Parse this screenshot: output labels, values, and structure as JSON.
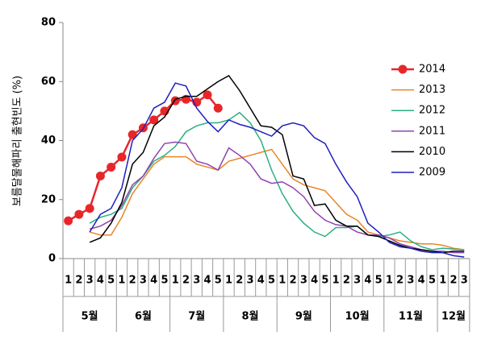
{
  "chart_data": {
    "type": "line",
    "y_label": "보름달물해파리 출현빈도 (%)",
    "categories": [
      "1",
      "2",
      "3",
      "4",
      "5",
      "1",
      "2",
      "3",
      "4",
      "5",
      "1",
      "2",
      "3",
      "4",
      "5",
      "1",
      "2",
      "3",
      "4",
      "5",
      "1",
      "2",
      "3",
      "4",
      "5",
      "1",
      "2",
      "3",
      "4",
      "5",
      "1",
      "2",
      "3",
      "4",
      "5",
      "1",
      "2",
      "3"
    ],
    "groups": [
      {
        "label": "5월",
        "span": 5
      },
      {
        "label": "6월",
        "span": 5
      },
      {
        "label": "7월",
        "span": 5
      },
      {
        "label": "8월",
        "span": 5
      },
      {
        "label": "9월",
        "span": 5
      },
      {
        "label": "10월",
        "span": 5
      },
      {
        "label": "11월",
        "span": 5
      },
      {
        "label": "12월",
        "span": 3
      }
    ],
    "ylim": [
      0,
      80
    ],
    "yticks": [
      0,
      20,
      40,
      60,
      80
    ],
    "grid": false,
    "legend": "right",
    "series": [
      {
        "name": "2014",
        "color": "#e8262a",
        "markers": true,
        "values": [
          12.8,
          15,
          17,
          28,
          31,
          34.4,
          42,
          44.3,
          47,
          50,
          53.5,
          54,
          53,
          55.5,
          51,
          null,
          null,
          null,
          null,
          null,
          null,
          null,
          null,
          null,
          null,
          null,
          null,
          null,
          null,
          null,
          null,
          null,
          null,
          null,
          null,
          null,
          null,
          null
        ]
      },
      {
        "name": "2013",
        "color": "#e8862a",
        "markers": false,
        "values": [
          null,
          null,
          9,
          8,
          8,
          14,
          22,
          27,
          32,
          34.5,
          34.5,
          34.5,
          32,
          31,
          30,
          33,
          34,
          35,
          36,
          37,
          32,
          27,
          25,
          24,
          23,
          19,
          15,
          13,
          9,
          8,
          7,
          6,
          5.5,
          5,
          5,
          4.5,
          3.5,
          3
        ]
      },
      {
        "name": "2012",
        "color": "#2ab07f",
        "markers": false,
        "values": [
          null,
          null,
          12,
          14,
          15,
          17,
          24,
          28,
          33,
          35,
          38,
          43,
          45,
          46,
          46,
          47,
          49.5,
          46,
          40,
          30,
          22,
          16,
          12,
          9,
          7.5,
          10.5,
          10.5,
          11,
          8,
          7.5,
          8,
          9,
          6,
          4,
          3,
          3.5,
          3.2,
          3
        ]
      },
      {
        "name": "2011",
        "color": "#8e44ad",
        "markers": false,
        "values": [
          null,
          null,
          10,
          11,
          13,
          18,
          25,
          28,
          34,
          39,
          39.5,
          39,
          33,
          32,
          30,
          37.5,
          35,
          32,
          27,
          25.5,
          26,
          24,
          21,
          16,
          13,
          11.5,
          11,
          9,
          8,
          8,
          7,
          5,
          4,
          3,
          2.5,
          2.5,
          2,
          2
        ]
      },
      {
        "name": "2010",
        "color": "#000000",
        "markers": false,
        "values": [
          null,
          null,
          5.5,
          7,
          12,
          19,
          32,
          36,
          45,
          48,
          54,
          55,
          55,
          57.5,
          60,
          62,
          57,
          51,
          45,
          44.5,
          42,
          28,
          27,
          18,
          18.5,
          13,
          11,
          11,
          8,
          7.5,
          6,
          4.5,
          3.5,
          3,
          2.5,
          2,
          2.5,
          2.5
        ]
      },
      {
        "name": "2009",
        "color": "#1f1fbf",
        "markers": false,
        "values": [
          null,
          null,
          9,
          15,
          17,
          24,
          40,
          44,
          51,
          53,
          59.5,
          58.5,
          51,
          46.5,
          43,
          47,
          45.5,
          44.5,
          43,
          41.5,
          45,
          46,
          45,
          41,
          39,
          32,
          26,
          21,
          12,
          9,
          5.5,
          4,
          3.5,
          2.5,
          2,
          2,
          1,
          0.5
        ]
      }
    ]
  }
}
